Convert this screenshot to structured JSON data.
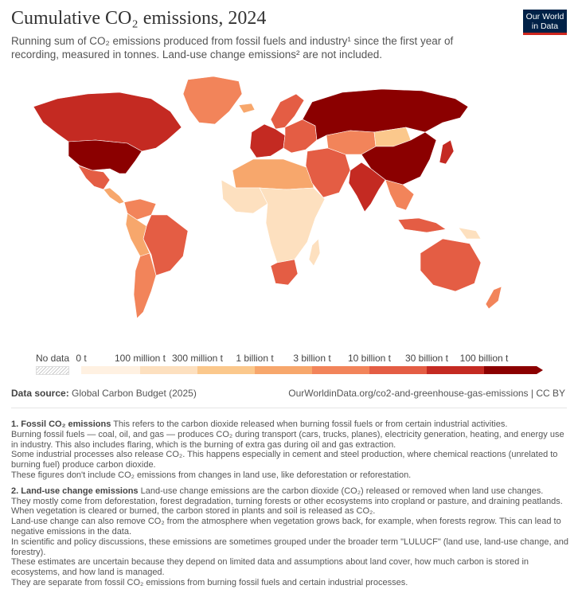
{
  "header": {
    "title": "Cumulative CO₂ emissions, 2024",
    "subtitle": "Running sum of CO₂ emissions produced from fossil fuels and industry¹ since the first year of recording, measured in tonnes. Land-use change emissions² are not included.",
    "logo_line1": "Our World",
    "logo_line2": "in Data"
  },
  "legend": {
    "no_data_label": "No data",
    "bins": [
      {
        "label": "0 t",
        "color": "#fff1e2"
      },
      {
        "label": "100 million t",
        "color": "#fde0bf"
      },
      {
        "label": "300 million t",
        "color": "#fbc88c"
      },
      {
        "label": "1 billion t",
        "color": "#f7a76c"
      },
      {
        "label": "3 billion t",
        "color": "#f2845a"
      },
      {
        "label": "10 billion t",
        "color": "#e45d44"
      },
      {
        "label": "30 billion t",
        "color": "#c42a22"
      },
      {
        "label": "100 billion t",
        "color": "#8b0000"
      }
    ]
  },
  "footer": {
    "source_label": "Data source:",
    "source_text": "Global Carbon Budget (2025)",
    "credit": "OurWorldinData.org/co2-and-greenhouse-gas-emissions | CC BY"
  },
  "notes": {
    "note1_title": "1. Fossil CO₂ emissions",
    "note1_lead": "This refers to the carbon dioxide released when burning fossil fuels or from certain industrial activities.",
    "note1_lines": [
      "Burning fossil fuels — coal, oil, and gas — produces CO₂ during transport (cars, trucks, planes), electricity generation, heating, and energy use in industry. This also includes flaring, which is the burning of extra gas during oil and gas extraction.",
      "Some industrial processes also release CO₂. This happens especially in cement and steel production, where chemical reactions (unrelated to burning fuel) produce carbon dioxide.",
      "These figures don't include CO₂ emissions from changes in land use, like deforestation or reforestation."
    ],
    "note2_title": "2. Land-use change emissions",
    "note2_lead": "Land-use change emissions are the carbon dioxide (CO₂) released or removed when land use changes.",
    "note2_lines": [
      "They mostly come from deforestation, forest degradation, turning forests or other ecosystems into cropland or pasture, and draining peatlands. When vegetation is cleared or burned, the carbon stored in plants and soil is released as CO₂.",
      "Land-use change can also remove CO₂ from the atmosphere when vegetation grows back, for example, when forests regrow. This can lead to negative emissions in the data.",
      "In scientific and policy discussions, these emissions are sometimes grouped under the broader term \"LULUCF\" (land use, land-use change, and forestry).",
      "These estimates are uncertain because they depend on limited data and assumptions about land cover, how much carbon is stored in ecosystems, and how land is managed.",
      "They are separate from fossil CO₂ emissions from burning fossil fuels and certain industrial processes."
    ]
  },
  "regions": [
    {
      "name": "Canada",
      "color": "#c42a22"
    },
    {
      "name": "Greenland",
      "color": "#f2845a"
    },
    {
      "name": "United States",
      "color": "#8b0000"
    },
    {
      "name": "Mexico",
      "color": "#e45d44"
    },
    {
      "name": "Central America",
      "color": "#f7a76c"
    },
    {
      "name": "Colombia / Venezuela",
      "color": "#f2845a"
    },
    {
      "name": "Brazil",
      "color": "#e45d44"
    },
    {
      "name": "Peru / Bolivia",
      "color": "#f7a76c"
    },
    {
      "name": "Argentina / Chile",
      "color": "#f2845a"
    },
    {
      "name": "Iceland",
      "color": "#f7a76c"
    },
    {
      "name": "Western Europe",
      "color": "#c42a22"
    },
    {
      "name": "Scandinavia",
      "color": "#e45d44"
    },
    {
      "name": "Eastern Europe",
      "color": "#e45d44"
    },
    {
      "name": "Russia",
      "color": "#8b0000"
    },
    {
      "name": "North Africa",
      "color": "#f7a76c"
    },
    {
      "name": "West Africa",
      "color": "#fde0bf"
    },
    {
      "name": "Central & East Africa",
      "color": "#fde0bf"
    },
    {
      "name": "South Africa",
      "color": "#e45d44"
    },
    {
      "name": "Madagascar",
      "color": "#fde0bf"
    },
    {
      "name": "Middle East",
      "color": "#e45d44"
    },
    {
      "name": "Central Asia",
      "color": "#f2845a"
    },
    {
      "name": "Mongolia",
      "color": "#fbc88c"
    },
    {
      "name": "China",
      "color": "#8b0000"
    },
    {
      "name": "India",
      "color": "#c42a22"
    },
    {
      "name": "Southeast Asia",
      "color": "#f2845a"
    },
    {
      "name": "Japan",
      "color": "#c42a22"
    },
    {
      "name": "Indonesia",
      "color": "#e45d44"
    },
    {
      "name": "Papua New Guinea",
      "color": "#fde0bf"
    },
    {
      "name": "Australia",
      "color": "#e45d44"
    },
    {
      "name": "New Zealand",
      "color": "#f2845a"
    }
  ]
}
